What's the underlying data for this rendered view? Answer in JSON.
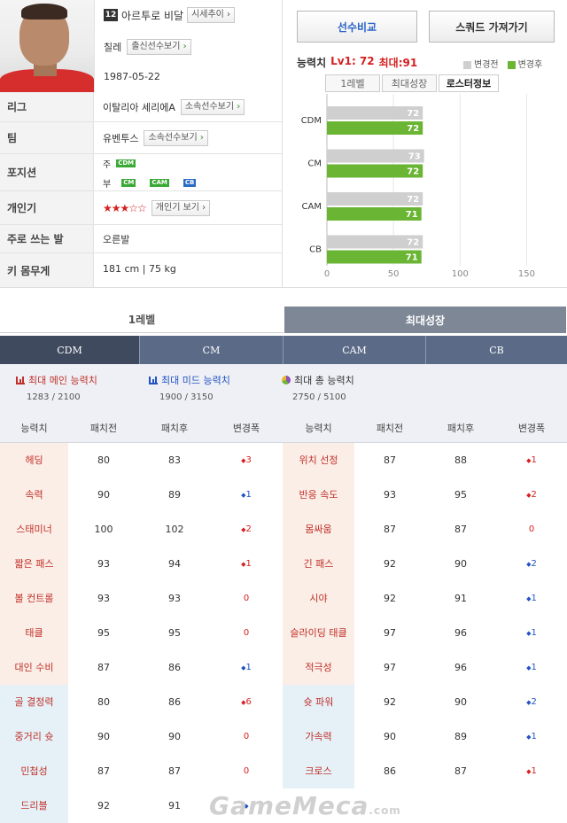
{
  "profile": {
    "season_badge": "12",
    "name": "아르투로 비달",
    "name_btn": "시세추이",
    "nation": "칠레",
    "nation_btn": "출신선수보기",
    "birth": "1987-05-22"
  },
  "info_rows": [
    {
      "label": "리그",
      "value": "이탈리아 세리에A",
      "btn": "소속선수보기"
    },
    {
      "label": "팀",
      "value": "유벤투스",
      "btn": "소속선수보기"
    },
    {
      "label": "포지션",
      "main_prefix": "주",
      "main_pos": [
        "CDM"
      ],
      "sub_prefix": "부",
      "sub_pos": [
        "CM",
        "CAM",
        "CB"
      ]
    },
    {
      "label": "개인기",
      "stars": "★★★☆☆",
      "btn": "개인기 보기"
    },
    {
      "label": "주로 쓰는 발",
      "value": "오른발"
    },
    {
      "label": "키 몸무게",
      "value": "181 cm | 75 kg"
    }
  ],
  "actions": {
    "compare": "선수비교",
    "squad": "스쿼드 가져가기"
  },
  "ability": {
    "title": "능력치",
    "level_text": "Lv1: 72",
    "max_text": "최대:91",
    "legend_before": "변경전",
    "legend_after": "변경후",
    "subtabs": [
      "1레벨",
      "최대성장",
      "로스터정보"
    ]
  },
  "chart_data": {
    "type": "bar",
    "categories": [
      "CDM",
      "CM",
      "CAM",
      "CB"
    ],
    "series": [
      {
        "name": "변경전",
        "values": [
          72,
          73,
          72,
          72
        ],
        "color": "#cfcfcf"
      },
      {
        "name": "변경후",
        "values": [
          72,
          72,
          71,
          71
        ],
        "color": "#6ab534"
      }
    ],
    "xticks": [
      "0",
      "50",
      "100",
      "150"
    ],
    "xlim": [
      0,
      173
    ],
    "orientation": "horizontal"
  },
  "level_tabs": {
    "left": "1레벨",
    "right": "최대성장"
  },
  "pos_tabs": [
    "CDM",
    "CM",
    "CAM",
    "CB"
  ],
  "summary": [
    {
      "title": "최대 메인 능력치",
      "value": "1283 / 2100",
      "icon_color": "#c0302a"
    },
    {
      "title": "최대 미드 능력치",
      "value": "1900 / 3150",
      "icon_color": "#2252c4"
    },
    {
      "title": "최대 총 능력치",
      "value": "2750 / 5100",
      "icon_color": "#8a4fb8"
    }
  ],
  "table_headers": [
    "능력치",
    "패치전",
    "패치후",
    "변경폭",
    "능력치",
    "패치전",
    "패치후",
    "변경폭"
  ],
  "stats_left": [
    {
      "name": "헤딩",
      "before": "80",
      "after": "83",
      "change": "3",
      "dir": "up"
    },
    {
      "name": "속력",
      "before": "90",
      "after": "89",
      "change": "1",
      "dir": "down"
    },
    {
      "name": "스태미너",
      "before": "100",
      "after": "102",
      "change": "2",
      "dir": "up"
    },
    {
      "name": "짧은 패스",
      "before": "93",
      "after": "94",
      "change": "1",
      "dir": "up"
    },
    {
      "name": "볼 컨트롤",
      "before": "93",
      "after": "93",
      "change": "0",
      "dir": "zero"
    },
    {
      "name": "태클",
      "before": "95",
      "after": "95",
      "change": "0",
      "dir": "zero"
    },
    {
      "name": "대인 수비",
      "before": "87",
      "after": "86",
      "change": "1",
      "dir": "down"
    },
    {
      "name": "골 결정력",
      "before": "80",
      "after": "86",
      "change": "6",
      "dir": "up"
    },
    {
      "name": "중거리 슛",
      "before": "90",
      "after": "90",
      "change": "0",
      "dir": "zero"
    },
    {
      "name": "민첩성",
      "before": "87",
      "after": "87",
      "change": "0",
      "dir": "zero"
    },
    {
      "name": "드리블",
      "before": "92",
      "after": "91",
      "change": "",
      "dir": "down"
    }
  ],
  "stats_right": [
    {
      "name": "위치 선정",
      "before": "87",
      "after": "88",
      "change": "1",
      "dir": "up"
    },
    {
      "name": "반응 속도",
      "before": "93",
      "after": "95",
      "change": "2",
      "dir": "up"
    },
    {
      "name": "몸싸움",
      "before": "87",
      "after": "87",
      "change": "0",
      "dir": "zero"
    },
    {
      "name": "긴 패스",
      "before": "92",
      "after": "90",
      "change": "2",
      "dir": "down"
    },
    {
      "name": "시야",
      "before": "92",
      "after": "91",
      "change": "1",
      "dir": "down"
    },
    {
      "name": "슬라이딩 태클",
      "before": "97",
      "after": "96",
      "change": "1",
      "dir": "down"
    },
    {
      "name": "적극성",
      "before": "97",
      "after": "96",
      "change": "1",
      "dir": "down"
    },
    {
      "name": "슛 파워",
      "before": "92",
      "after": "90",
      "change": "2",
      "dir": "down"
    },
    {
      "name": "가속력",
      "before": "90",
      "after": "89",
      "change": "1",
      "dir": "down"
    },
    {
      "name": "크로스",
      "before": "86",
      "after": "87",
      "change": "1",
      "dir": "up"
    }
  ],
  "watermark": {
    "brand": "GameMeca",
    "suffix": ".com"
  }
}
